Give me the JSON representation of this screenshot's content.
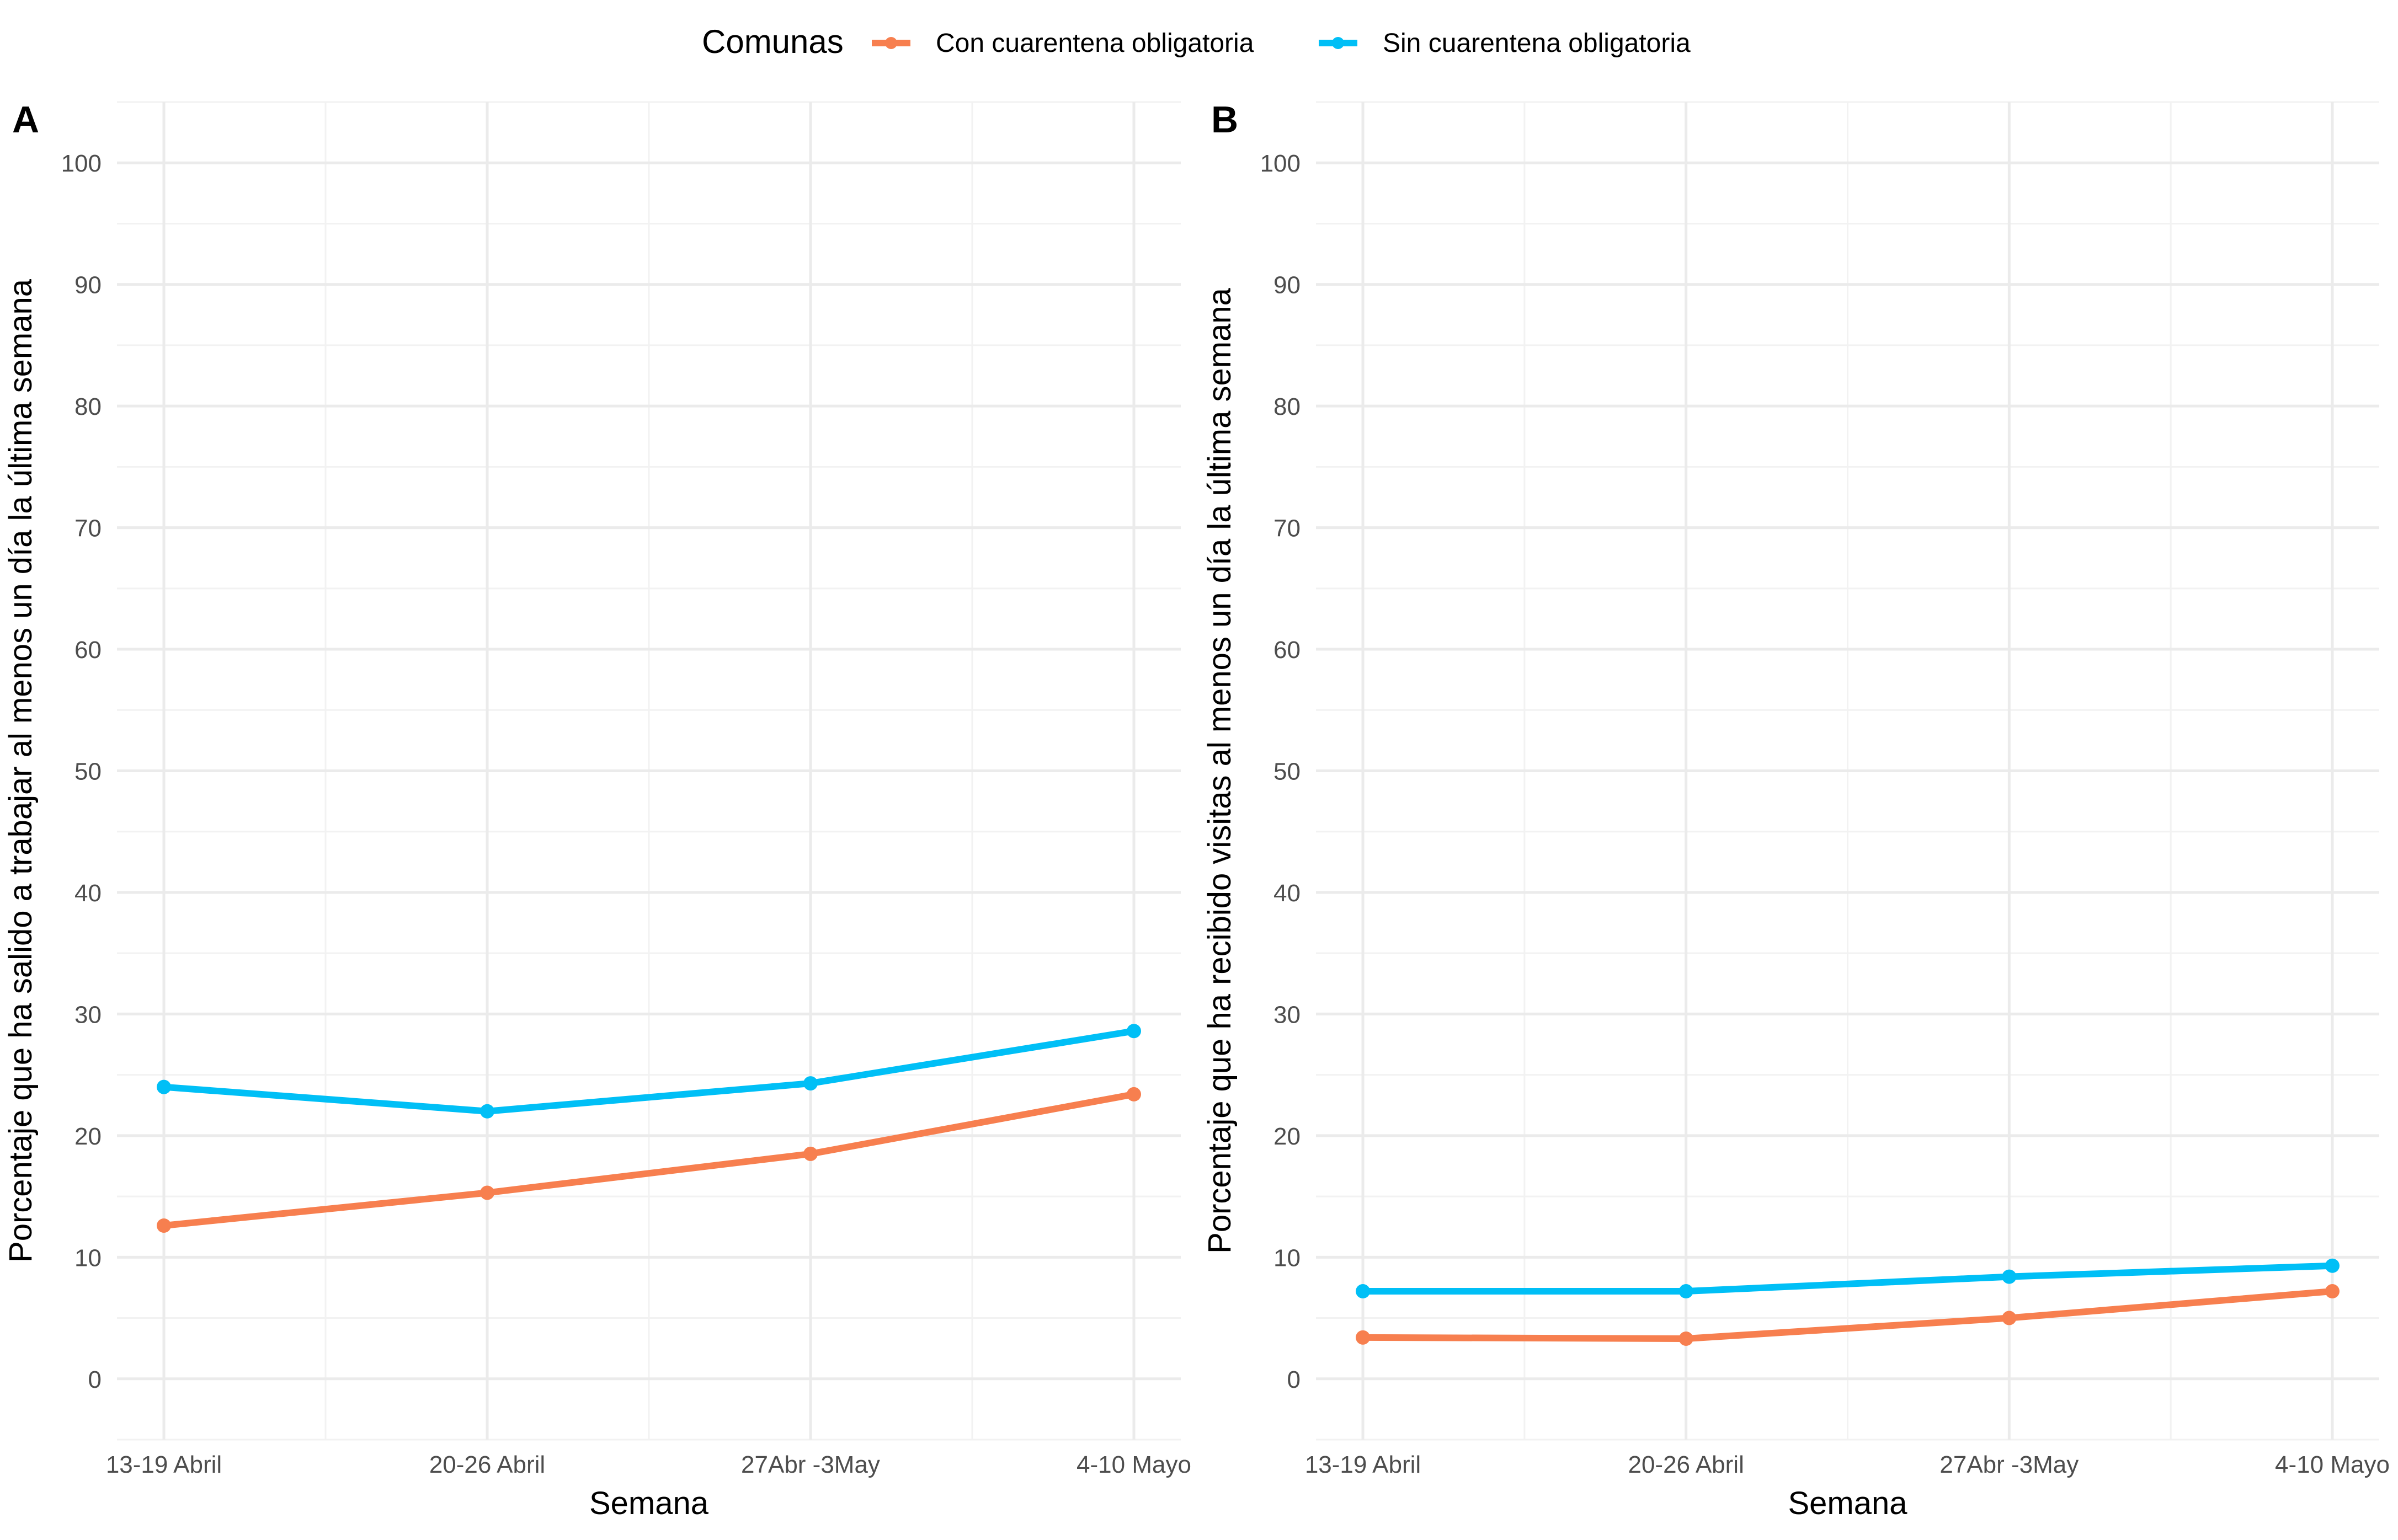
{
  "legend": {
    "title": "Comunas",
    "position": "top-center",
    "items": [
      {
        "label": "Con cuarentena obligatoria",
        "color": "#F77F4F"
      },
      {
        "label": "Sin cuarentena obligatoria",
        "color": "#00BFF6"
      }
    ]
  },
  "chart_data": [
    {
      "panel_label": "A",
      "type": "line",
      "categories": [
        "13-19 Abril",
        "20-26 Abril",
        "27Abr -3May",
        "4-10 Mayo"
      ],
      "xlabel": "Semana",
      "ylabel": "Porcentaje que ha salido a trabajar al menos un día la última semana",
      "ylim": [
        -5,
        105
      ],
      "yticks": [
        0,
        10,
        20,
        30,
        40,
        50,
        60,
        70,
        80,
        90,
        100
      ],
      "grid": true,
      "series": [
        {
          "name": "Con cuarentena obligatoria",
          "color": "#F77F4F",
          "values": [
            12.6,
            15.3,
            18.5,
            23.4
          ]
        },
        {
          "name": "Sin cuarentena obligatoria",
          "color": "#00BFF6",
          "values": [
            24.0,
            22.0,
            24.3,
            28.6
          ]
        }
      ]
    },
    {
      "panel_label": "B",
      "type": "line",
      "categories": [
        "13-19 Abril",
        "20-26 Abril",
        "27Abr -3May",
        "4-10 Mayo"
      ],
      "xlabel": "Semana",
      "ylabel": "Porcentaje que ha recibido visitas al menos un día la última semana",
      "ylim": [
        -5,
        105
      ],
      "yticks": [
        0,
        10,
        20,
        30,
        40,
        50,
        60,
        70,
        80,
        90,
        100
      ],
      "grid": true,
      "series": [
        {
          "name": "Con cuarentena obligatoria",
          "color": "#F77F4F",
          "values": [
            3.4,
            3.3,
            5.0,
            7.2
          ]
        },
        {
          "name": "Sin cuarentena obligatoria",
          "color": "#00BFF6",
          "values": [
            7.2,
            7.2,
            8.4,
            9.3
          ]
        }
      ]
    }
  ]
}
